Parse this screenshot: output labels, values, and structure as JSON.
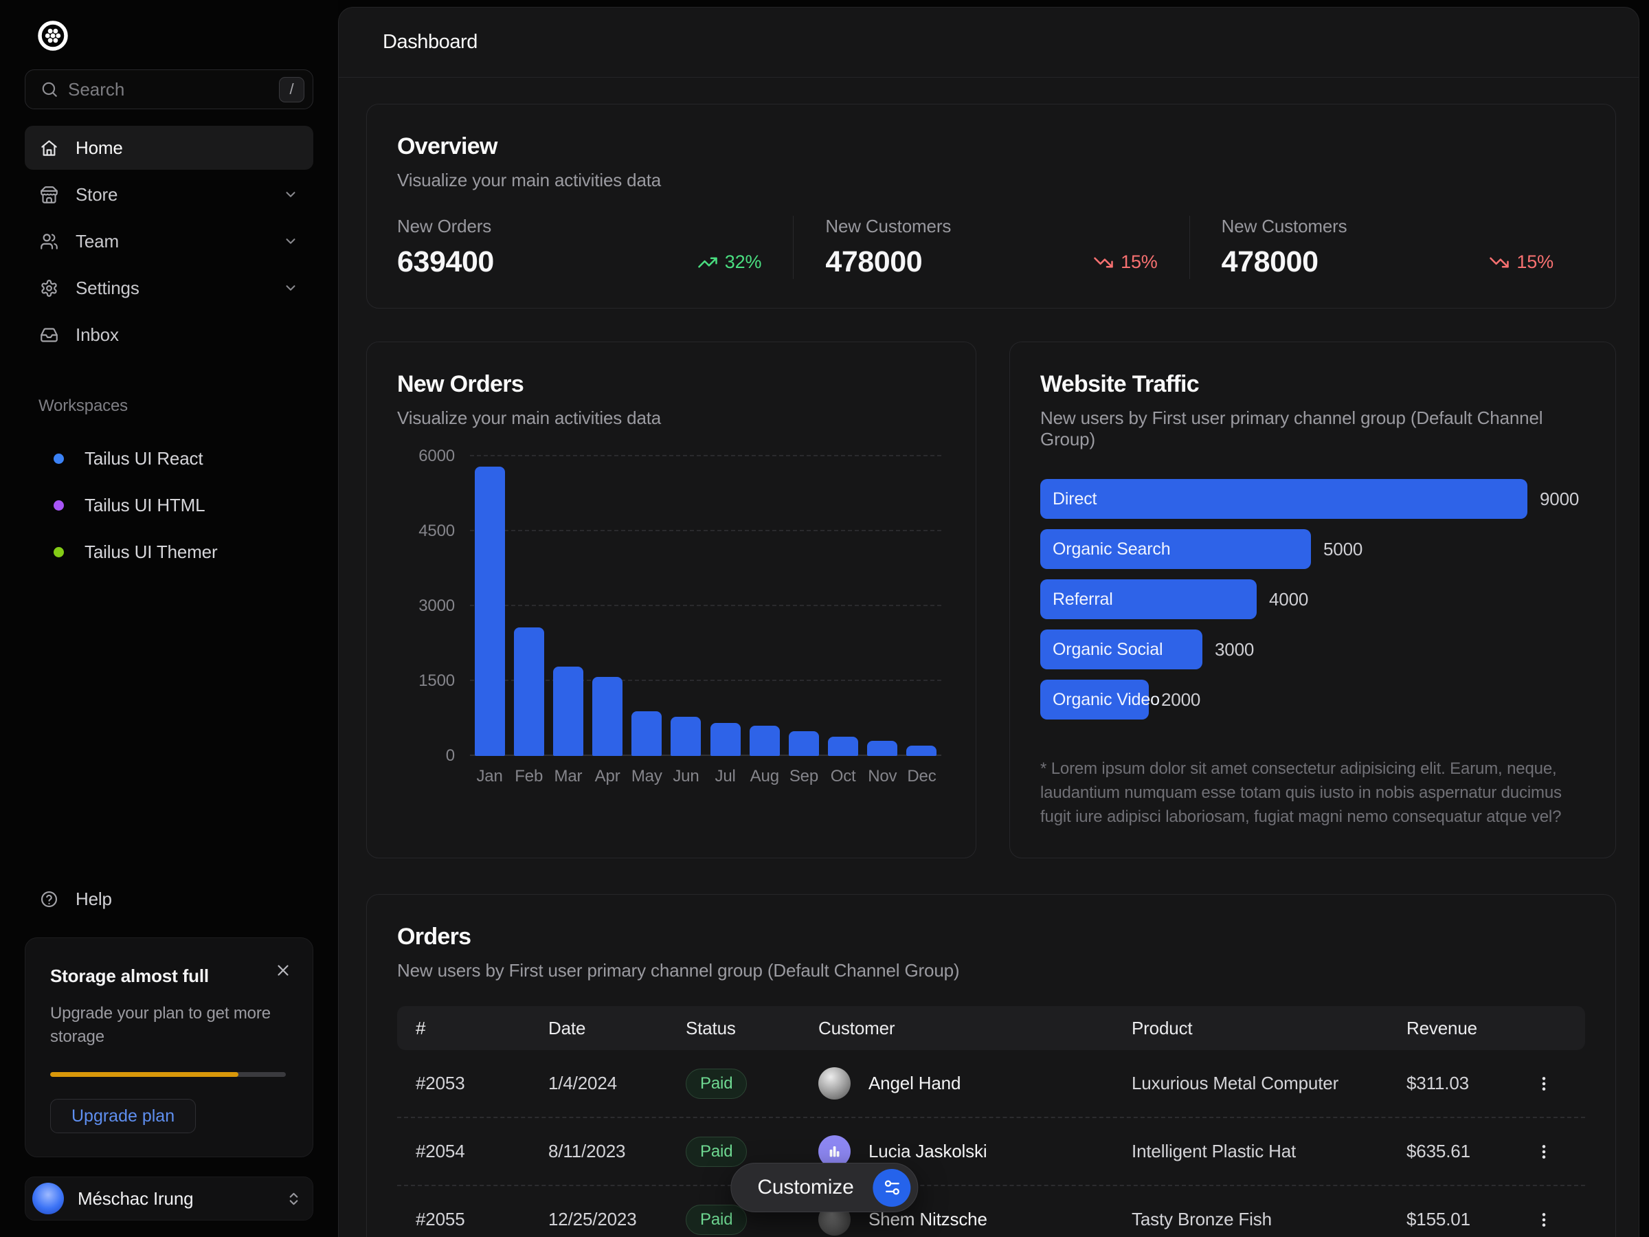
{
  "colors": {
    "accent_blue": "#2e63e8",
    "green_up": "#4ade80",
    "red_down": "#f87171",
    "amber_progress": "#d9980a",
    "lucia_avatar": "#8d87f2",
    "customize_icon_bg": "#2563eb"
  },
  "sidebar": {
    "search": {
      "placeholder": "Search",
      "shortcut": "/"
    },
    "nav": [
      {
        "id": "home",
        "label": "Home",
        "icon": "home-icon",
        "active": true,
        "chevron": false
      },
      {
        "id": "store",
        "label": "Store",
        "icon": "store-icon",
        "active": false,
        "chevron": true
      },
      {
        "id": "team",
        "label": "Team",
        "icon": "team-icon",
        "active": false,
        "chevron": true
      },
      {
        "id": "settings",
        "label": "Settings",
        "icon": "settings-icon",
        "active": false,
        "chevron": true
      },
      {
        "id": "inbox",
        "label": "Inbox",
        "icon": "inbox-icon",
        "active": false,
        "chevron": false
      }
    ],
    "workspaces_label": "Workspaces",
    "workspaces": [
      {
        "label": "Tailus UI React",
        "dot_color": "#3b82f6"
      },
      {
        "label": "Tailus UI HTML",
        "dot_color": "#a855f7"
      },
      {
        "label": "Tailus UI Themer",
        "dot_color": "#84cc16"
      }
    ],
    "help_label": "Help",
    "storage": {
      "title": "Storage almost full",
      "body": "Upgrade your plan to get more storage",
      "progress_percent": 80,
      "button_label": "Upgrade plan"
    },
    "user": {
      "name": "Méschac Irung"
    }
  },
  "header": {
    "title": "Dashboard"
  },
  "overview": {
    "title": "Overview",
    "subtitle": "Visualize your main activities data",
    "stats": [
      {
        "label": "New Orders",
        "value": "639400",
        "trend": "32%",
        "direction": "up"
      },
      {
        "label": "New Customers",
        "value": "478000",
        "trend": "15%",
        "direction": "down"
      },
      {
        "label": "New Customers",
        "value": "478000",
        "trend": "15%",
        "direction": "down"
      }
    ]
  },
  "chart_data": [
    {
      "type": "bar",
      "title": "New Orders",
      "subtitle": "Visualize your main activities data",
      "categories": [
        "Jan",
        "Feb",
        "Mar",
        "Apr",
        "May",
        "Jun",
        "Jul",
        "Aug",
        "Sep",
        "Oct",
        "Nov",
        "Dec"
      ],
      "values": [
        5800,
        2580,
        1790,
        1580,
        890,
        780,
        660,
        600,
        490,
        390,
        300,
        200
      ],
      "yticks": [
        0,
        1500,
        3000,
        4500,
        6000
      ],
      "ylim": [
        0,
        6000
      ],
      "bar_color": "#2e63e8",
      "grid": "dashed-horizontal"
    },
    {
      "type": "bar",
      "orientation": "horizontal",
      "title": "Website Traffic",
      "subtitle": "New users by First user primary channel group (Default Channel Group)",
      "categories": [
        "Direct",
        "Organic Search",
        "Referral",
        "Organic Social",
        "Organic Video"
      ],
      "values": [
        9000,
        5000,
        4000,
        3000,
        2000
      ],
      "xmax": 9000,
      "bar_color": "#2e63e8",
      "footnote": "* Lorem ipsum dolor sit amet consectetur adipisicing elit. Earum, neque, laudantium numquam esse totam quis iusto in nobis aspernatur ducimus fugit iure adipisci laboriosam, fugiat magni nemo consequatur atque vel?"
    }
  ],
  "orders": {
    "title": "Orders",
    "subtitle": "New users by First user primary channel group (Default Channel Group)",
    "columns": [
      "#",
      "Date",
      "Status",
      "Customer",
      "Product",
      "Revenue"
    ],
    "rows": [
      {
        "id": "#2053",
        "date": "1/4/2024",
        "status": "Paid",
        "customer": "Angel Hand",
        "avatar": "photo-light",
        "product": "Luxurious Metal Computer",
        "revenue": "$311.03"
      },
      {
        "id": "#2054",
        "date": "8/11/2023",
        "status": "Paid",
        "customer": "Lucia Jaskolski",
        "avatar": "bars-purple",
        "product": "Intelligent Plastic Hat",
        "revenue": "$635.61"
      },
      {
        "id": "#2055",
        "date": "12/25/2023",
        "status": "Paid",
        "customer": "Shem Nitzsche",
        "avatar": "photo-dark",
        "product": "Tasty Bronze Fish",
        "revenue": "$155.01"
      }
    ]
  },
  "customize": {
    "label": "Customize"
  }
}
